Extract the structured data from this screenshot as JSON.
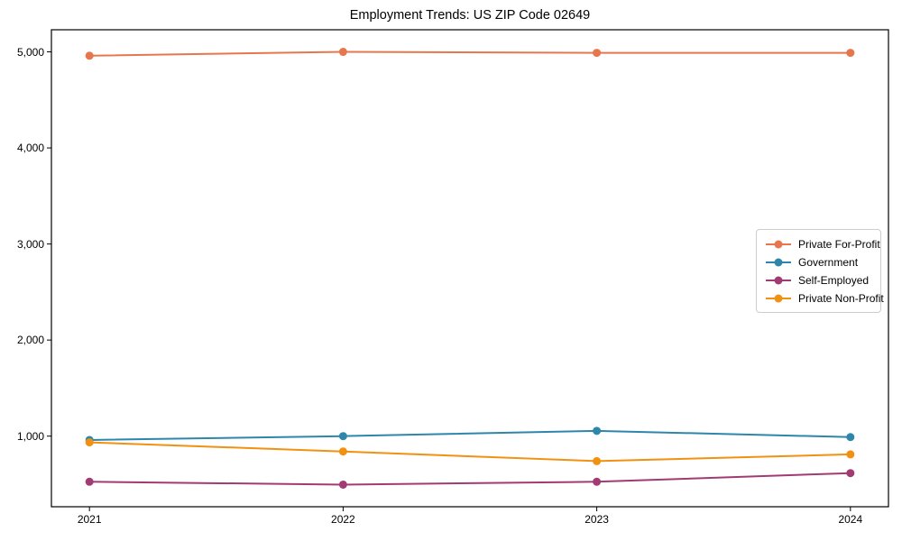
{
  "title": "Employment Trends: US ZIP Code 02649",
  "chart_data": {
    "type": "line",
    "title": "Employment Trends: US ZIP Code 02649",
    "xlabel": "",
    "ylabel": "",
    "x": [
      2021,
      2022,
      2023,
      2024
    ],
    "x_ticks": [
      {
        "v": 2021,
        "label": "2021"
      },
      {
        "v": 2022,
        "label": "2022"
      },
      {
        "v": 2023,
        "label": "2023"
      },
      {
        "v": 2024,
        "label": "2024"
      }
    ],
    "y_ticks": [
      {
        "v": 1000,
        "label": "1,000"
      },
      {
        "v": 2000,
        "label": "2,000"
      },
      {
        "v": 3000,
        "label": "3,000"
      },
      {
        "v": 4000,
        "label": "4,000"
      },
      {
        "v": 5000,
        "label": "5,000"
      }
    ],
    "xlim": [
      2020.85,
      2024.15
    ],
    "ylim": [
      265,
      5230
    ],
    "grid": false,
    "legend_position": "center right",
    "series": [
      {
        "name": "Private For-Profit",
        "color": "#E8764D",
        "values": [
          4960,
          5000,
          4990,
          4990
        ]
      },
      {
        "name": "Government",
        "color": "#2E86AB",
        "values": [
          960,
          1000,
          1055,
          990
        ]
      },
      {
        "name": "Self-Employed",
        "color": "#A23B72",
        "values": [
          525,
          495,
          525,
          615
        ]
      },
      {
        "name": "Private Non-Profit",
        "color": "#F29111",
        "values": [
          935,
          840,
          740,
          810
        ]
      }
    ]
  }
}
